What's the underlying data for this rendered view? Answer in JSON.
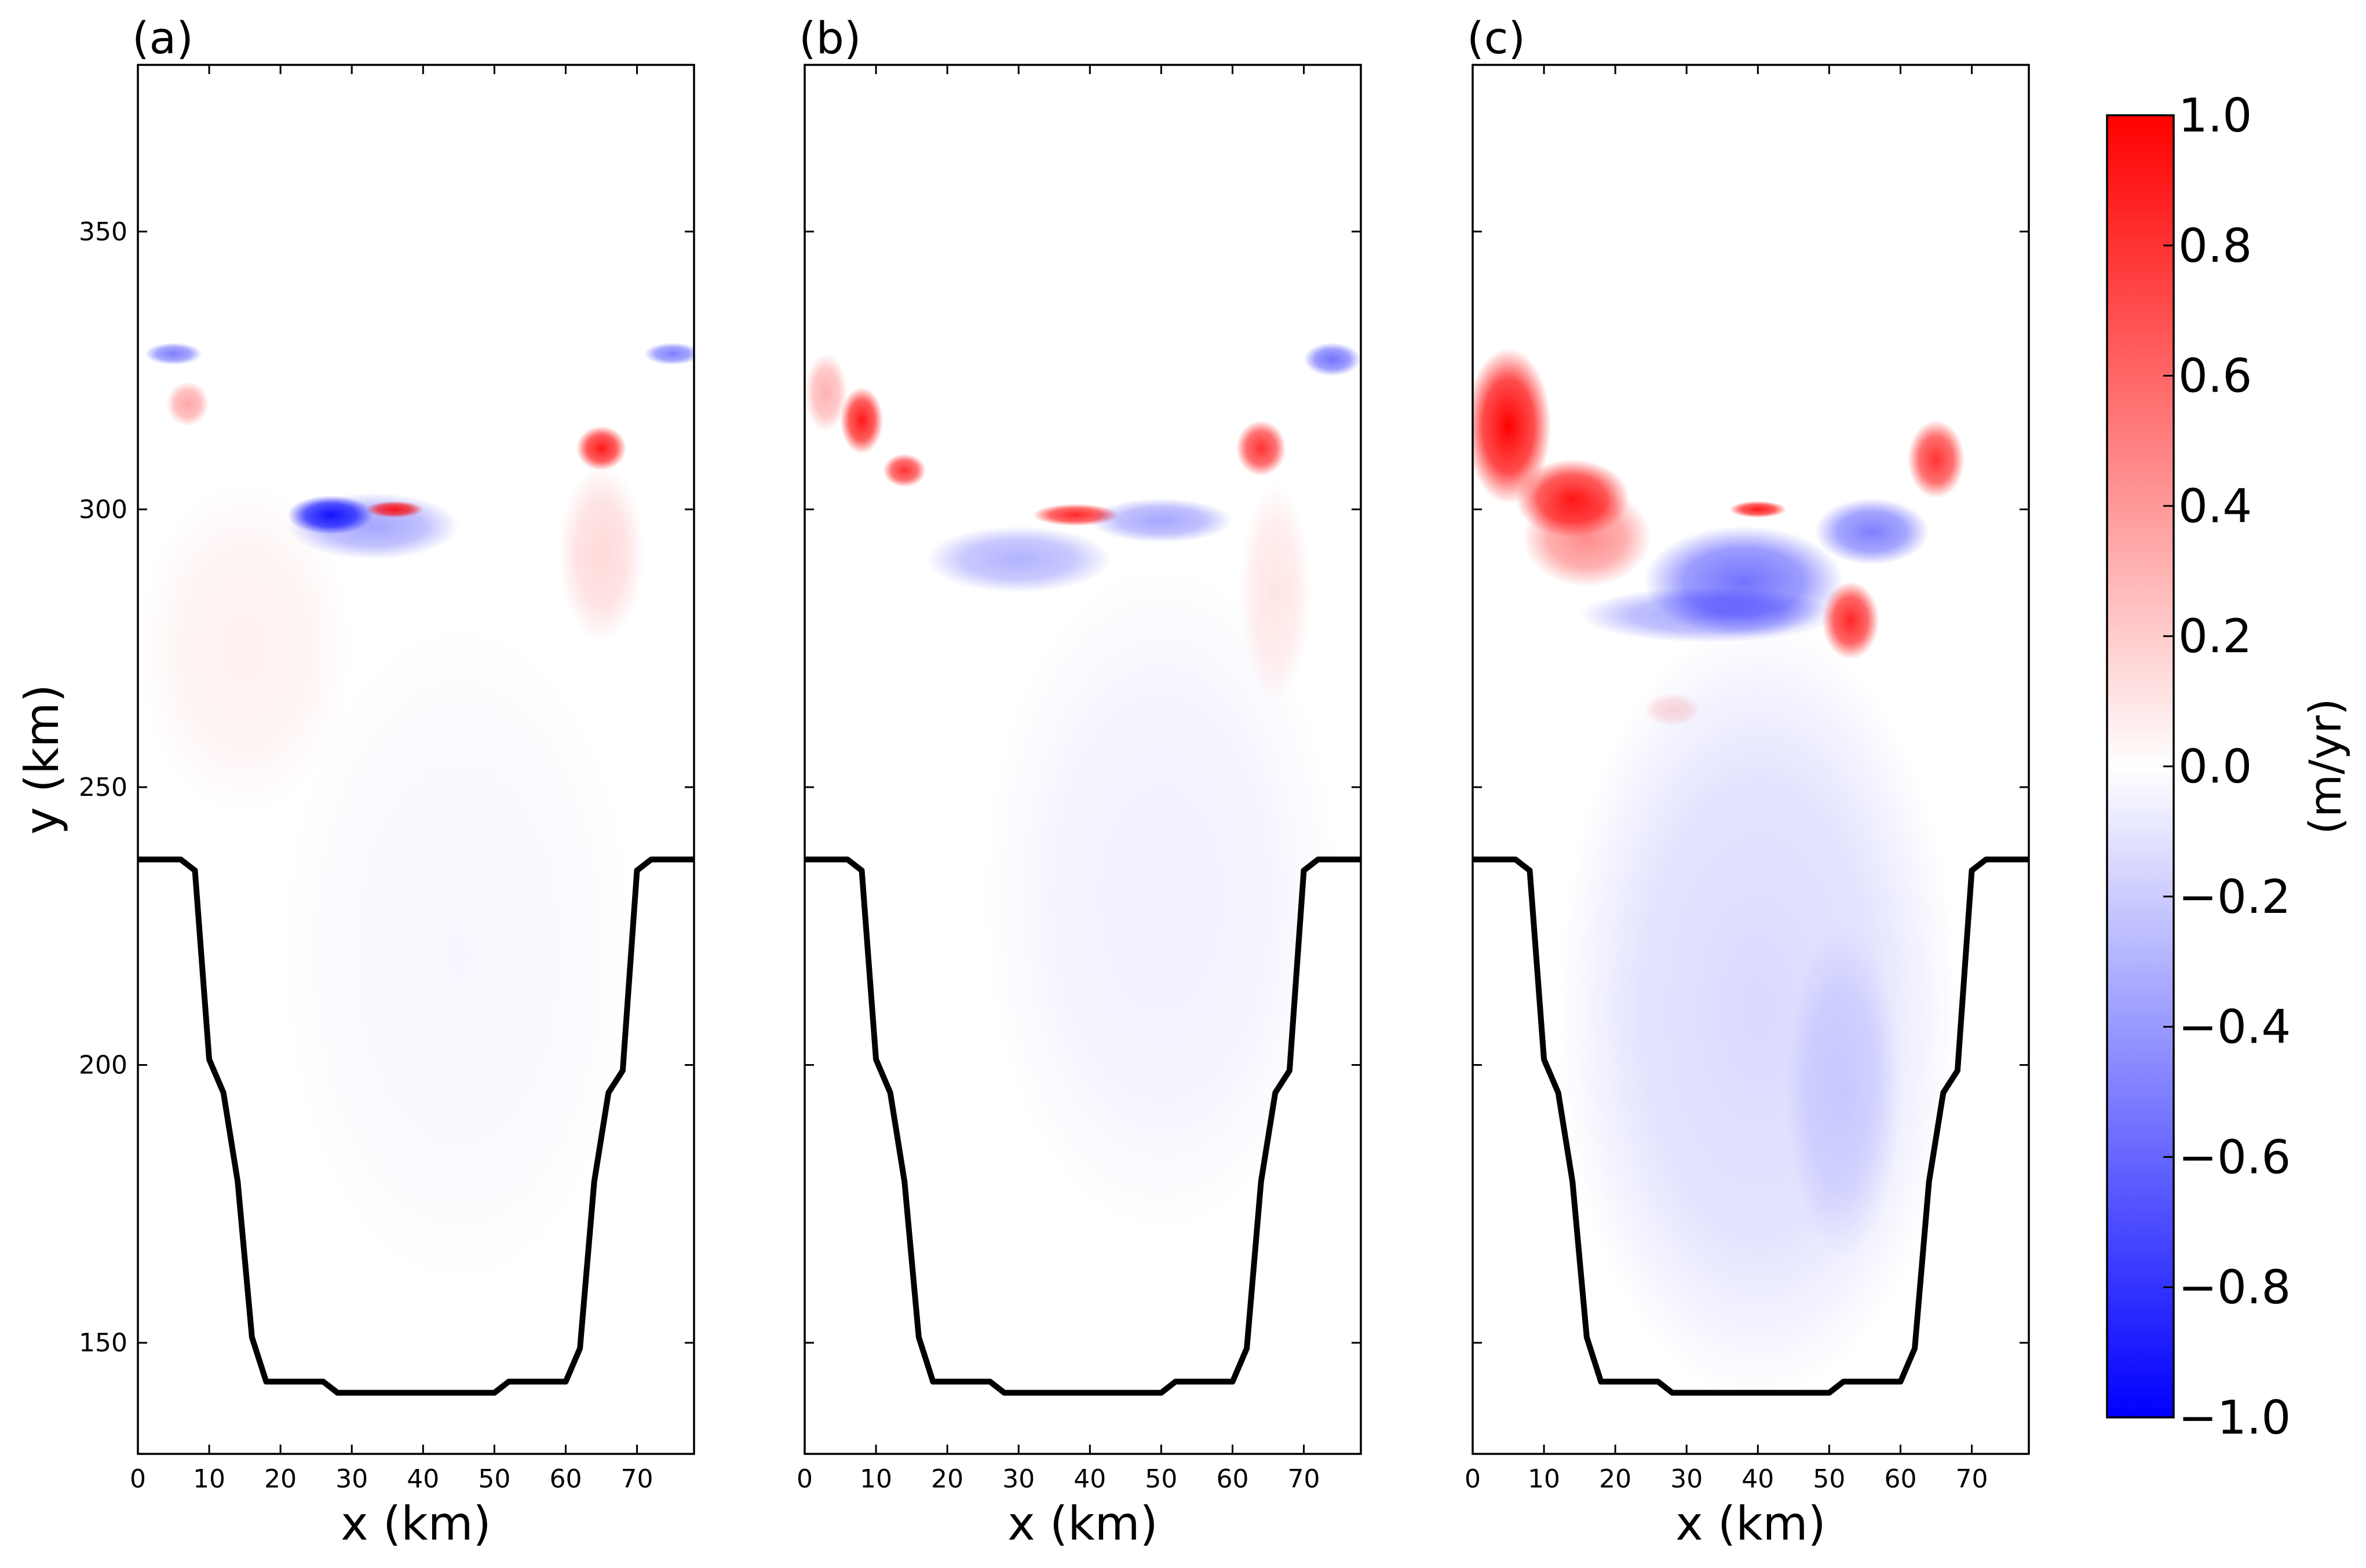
{
  "chart_data": {
    "type": "heatmap",
    "colormap": "bwr",
    "colorbar": {
      "label": "(m/yr)",
      "range": [
        -1.0,
        1.0
      ],
      "tick_values": [
        -1.0,
        -0.8,
        -0.6,
        -0.4,
        -0.2,
        0.0,
        0.2,
        0.4,
        0.6,
        0.8,
        1.0
      ],
      "tick_labels": [
        "−1.0",
        "−0.8",
        "−0.6",
        "−0.4",
        "−0.2",
        "0.0",
        "0.2",
        "0.4",
        "0.6",
        "0.8",
        "1.0"
      ]
    },
    "xlabel": "x (km)",
    "ylabel": "y (km)",
    "xlim": [
      0,
      78
    ],
    "ylim": [
      130,
      380
    ],
    "x_ticks": [
      0,
      10,
      20,
      30,
      40,
      50,
      60,
      70
    ],
    "x_tick_labels": [
      "0",
      "10",
      "20",
      "30",
      "40",
      "50",
      "60",
      "70"
    ],
    "y_ticks": [
      150,
      200,
      250,
      300,
      350
    ],
    "y_tick_labels": [
      "150",
      "200",
      "250",
      "300",
      "350"
    ],
    "boundary_outline": {
      "x": [
        0,
        6,
        8,
        10,
        12,
        14,
        16,
        18,
        26,
        28,
        50,
        52,
        60,
        62,
        64,
        66,
        68,
        70,
        72,
        78
      ],
      "y": [
        237,
        237,
        235,
        201,
        195,
        179,
        151,
        143,
        143,
        141,
        141,
        143,
        143,
        149,
        179,
        195,
        199,
        235,
        237,
        237
      ]
    },
    "panels": [
      {
        "label": "(a)",
        "features": [
          {
            "kind": "blue",
            "cx": 27,
            "cy": 299,
            "rx": 6,
            "ry": 3.5,
            "value": -0.9
          },
          {
            "kind": "blue",
            "cx": 33,
            "cy": 297,
            "rx": 12,
            "ry": 6,
            "value": -0.35
          },
          {
            "kind": "red",
            "cx": 65,
            "cy": 311,
            "rx": 3.5,
            "ry": 4,
            "value": 0.9
          },
          {
            "kind": "red",
            "cx": 65,
            "cy": 292,
            "rx": 6,
            "ry": 16,
            "value": 0.15
          },
          {
            "kind": "red",
            "cx": 7,
            "cy": 319,
            "rx": 3,
            "ry": 4,
            "value": 0.35
          },
          {
            "kind": "blue",
            "cx": 5,
            "cy": 328,
            "rx": 4,
            "ry": 2,
            "value": -0.5
          },
          {
            "kind": "blue",
            "cx": 75,
            "cy": 328,
            "rx": 4,
            "ry": 2,
            "value": -0.5
          },
          {
            "kind": "red",
            "cx": 36,
            "cy": 300,
            "rx": 4,
            "ry": 1.5,
            "value": 0.9
          },
          {
            "kind": "red",
            "cx": 15,
            "cy": 275,
            "rx": 15,
            "ry": 30,
            "value": 0.06
          },
          {
            "kind": "blue",
            "cx": 45,
            "cy": 220,
            "rx": 25,
            "ry": 60,
            "value": -0.03
          }
        ]
      },
      {
        "label": "(b)",
        "features": [
          {
            "kind": "red",
            "cx": 8,
            "cy": 316,
            "rx": 3,
            "ry": 6,
            "value": 0.9
          },
          {
            "kind": "red",
            "cx": 14,
            "cy": 307,
            "rx": 3,
            "ry": 3,
            "value": 0.8
          },
          {
            "kind": "red",
            "cx": 3,
            "cy": 321,
            "rx": 3,
            "ry": 7,
            "value": 0.3
          },
          {
            "kind": "red",
            "cx": 64,
            "cy": 311,
            "rx": 3.5,
            "ry": 5,
            "value": 0.8
          },
          {
            "kind": "red",
            "cx": 38,
            "cy": 299,
            "rx": 6,
            "ry": 2,
            "value": 0.85
          },
          {
            "kind": "blue",
            "cx": 30,
            "cy": 291,
            "rx": 13,
            "ry": 6,
            "value": -0.3
          },
          {
            "kind": "blue",
            "cx": 50,
            "cy": 298,
            "rx": 10,
            "ry": 4,
            "value": -0.35
          },
          {
            "kind": "blue",
            "cx": 74,
            "cy": 327,
            "rx": 4,
            "ry": 3,
            "value": -0.55
          },
          {
            "kind": "red",
            "cx": 66,
            "cy": 285,
            "rx": 5,
            "ry": 20,
            "value": 0.1
          },
          {
            "kind": "blue",
            "cx": 50,
            "cy": 230,
            "rx": 25,
            "ry": 60,
            "value": -0.06
          }
        ]
      },
      {
        "label": "(c)",
        "features": [
          {
            "kind": "red",
            "cx": 5,
            "cy": 315,
            "rx": 6,
            "ry": 14,
            "value": 1.0
          },
          {
            "kind": "red",
            "cx": 14,
            "cy": 302,
            "rx": 8,
            "ry": 7,
            "value": 0.9
          },
          {
            "kind": "red",
            "cx": 16,
            "cy": 295,
            "rx": 9,
            "ry": 9,
            "value": 0.45
          },
          {
            "kind": "red",
            "cx": 53,
            "cy": 280,
            "rx": 4,
            "ry": 7,
            "value": 0.85
          },
          {
            "kind": "red",
            "cx": 65,
            "cy": 309,
            "rx": 4,
            "ry": 7,
            "value": 0.8
          },
          {
            "kind": "red",
            "cx": 40,
            "cy": 300,
            "rx": 4,
            "ry": 1.5,
            "value": 0.9
          },
          {
            "kind": "red",
            "cx": 28,
            "cy": 264,
            "rx": 4,
            "ry": 3,
            "value": 0.15
          },
          {
            "kind": "blue",
            "cx": 38,
            "cy": 287,
            "rx": 14,
            "ry": 10,
            "value": -0.55
          },
          {
            "kind": "blue",
            "cx": 56,
            "cy": 296,
            "rx": 8,
            "ry": 6,
            "value": -0.5
          },
          {
            "kind": "blue",
            "cx": 33,
            "cy": 281,
            "rx": 18,
            "ry": 5,
            "value": -0.35
          },
          {
            "kind": "blue",
            "cx": 40,
            "cy": 210,
            "rx": 28,
            "ry": 70,
            "value": -0.15
          },
          {
            "kind": "blue",
            "cx": 52,
            "cy": 195,
            "rx": 8,
            "ry": 30,
            "value": -0.12
          }
        ]
      }
    ]
  }
}
